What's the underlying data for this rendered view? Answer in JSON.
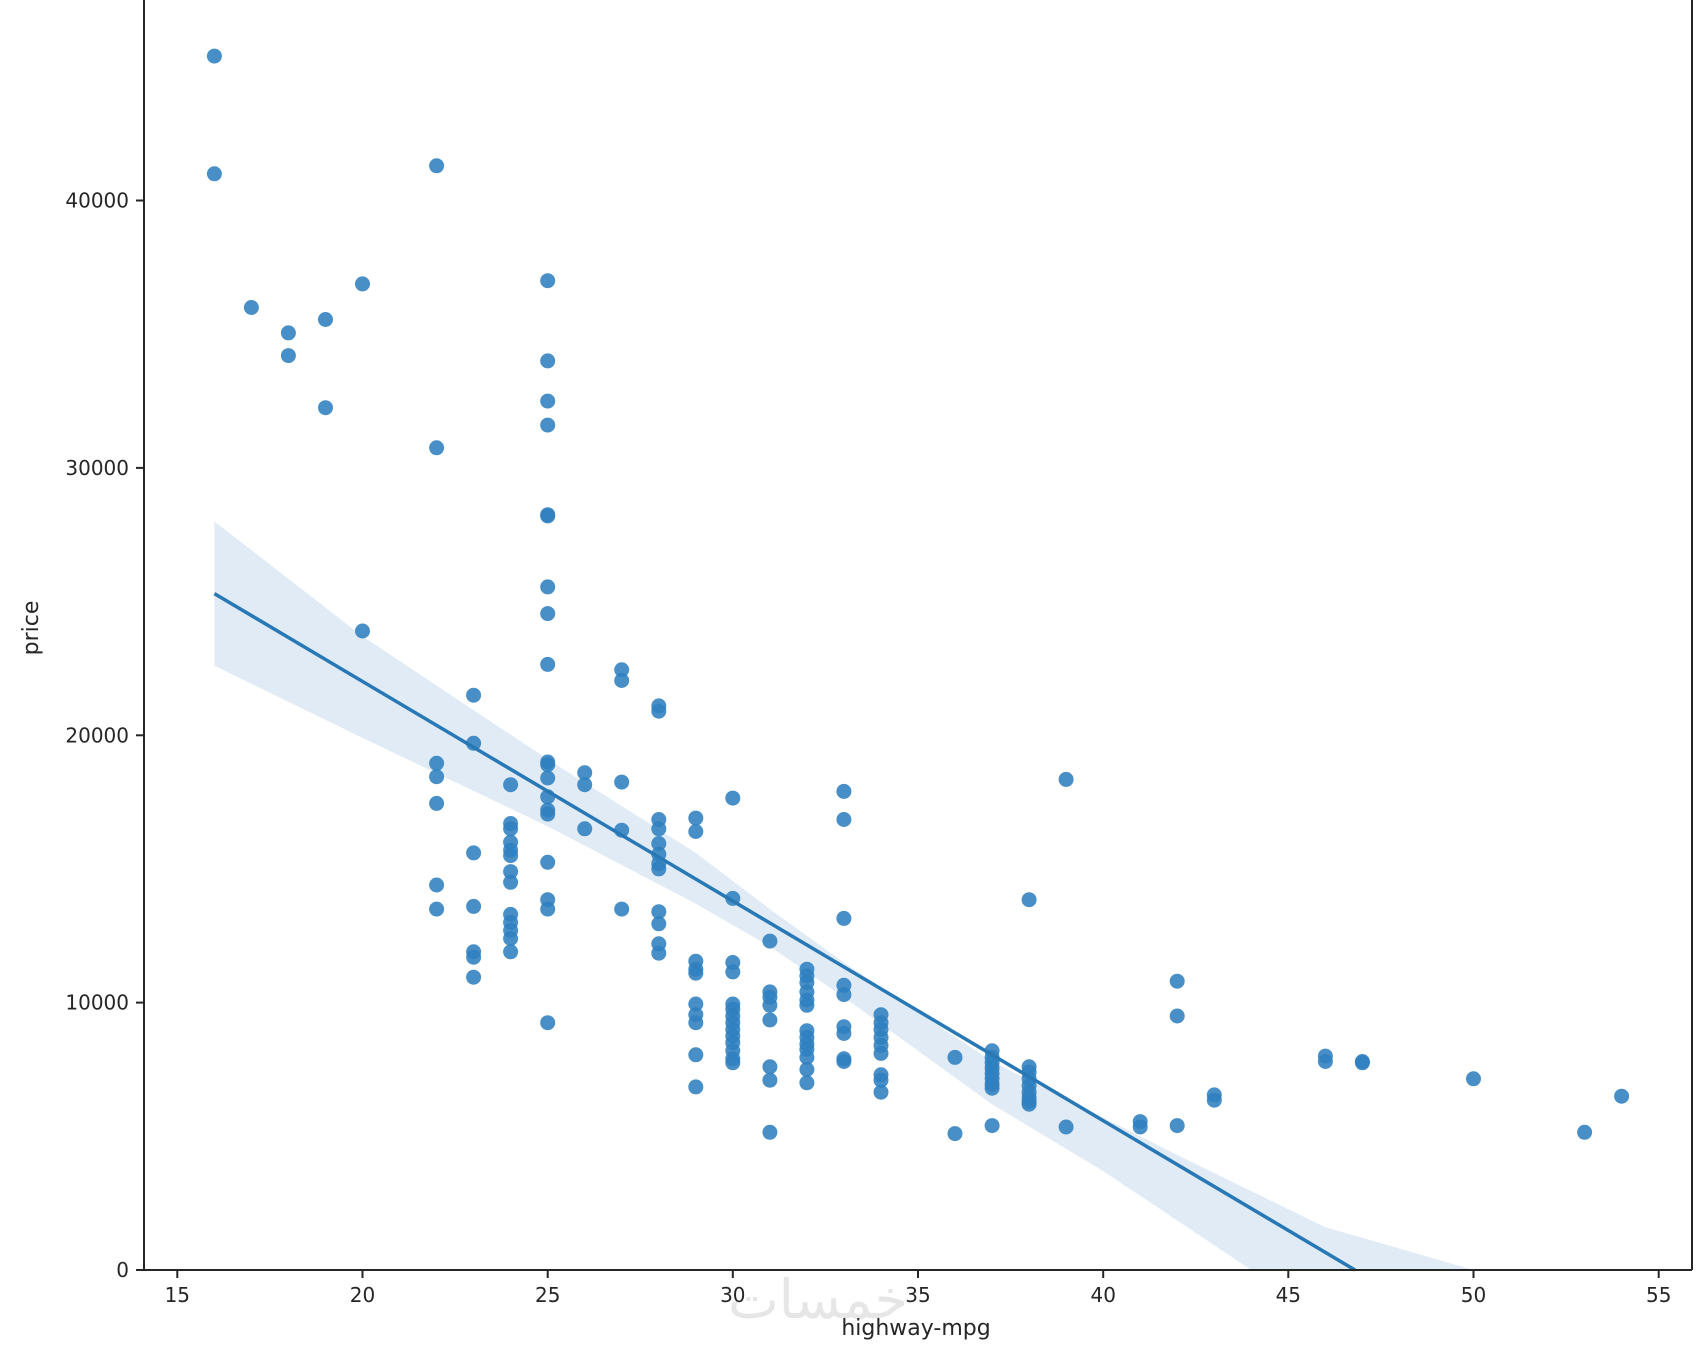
{
  "chart_data": {
    "type": "scatter",
    "title": "",
    "xlabel": "highway-mpg",
    "ylabel": "price",
    "xlim": [
      14.1,
      55.9
    ],
    "ylim": [
      0,
      47500
    ],
    "x_ticks": [
      {
        "value": 15,
        "label": "15"
      },
      {
        "value": 20,
        "label": "20"
      },
      {
        "value": 25,
        "label": "25"
      },
      {
        "value": 30,
        "label": "30"
      },
      {
        "value": 35,
        "label": "35"
      },
      {
        "value": 40,
        "label": "40"
      },
      {
        "value": 45,
        "label": "45"
      },
      {
        "value": 50,
        "label": "50"
      },
      {
        "value": 55,
        "label": "55"
      }
    ],
    "y_ticks": [
      {
        "value": 0,
        "label": "0"
      },
      {
        "value": 10000,
        "label": "10000"
      },
      {
        "value": 20000,
        "label": "20000"
      },
      {
        "value": 30000,
        "label": "30000"
      },
      {
        "value": 40000,
        "label": "40000"
      }
    ],
    "grid": false,
    "colors": {
      "points": "#2f7fbf",
      "line": "#2878b5",
      "band": "#c6dbef",
      "axes": "#262626"
    },
    "points": [
      {
        "x": 16,
        "y": 45400
      },
      {
        "x": 16,
        "y": 41000
      },
      {
        "x": 17,
        "y": 36000
      },
      {
        "x": 18,
        "y": 35050
      },
      {
        "x": 18,
        "y": 34200
      },
      {
        "x": 19,
        "y": 35550
      },
      {
        "x": 19,
        "y": 32250
      },
      {
        "x": 20,
        "y": 36880
      },
      {
        "x": 20,
        "y": 23900
      },
      {
        "x": 22,
        "y": 41300
      },
      {
        "x": 22,
        "y": 30750
      },
      {
        "x": 22,
        "y": 18950
      },
      {
        "x": 22,
        "y": 18450
      },
      {
        "x": 22,
        "y": 17450
      },
      {
        "x": 22,
        "y": 14400
      },
      {
        "x": 22,
        "y": 13500
      },
      {
        "x": 23,
        "y": 21500
      },
      {
        "x": 23,
        "y": 19700
      },
      {
        "x": 23,
        "y": 15600
      },
      {
        "x": 23,
        "y": 13600
      },
      {
        "x": 23,
        "y": 11900
      },
      {
        "x": 23,
        "y": 11700
      },
      {
        "x": 23,
        "y": 10950
      },
      {
        "x": 24,
        "y": 18150
      },
      {
        "x": 24,
        "y": 16700
      },
      {
        "x": 24,
        "y": 16500
      },
      {
        "x": 24,
        "y": 16000
      },
      {
        "x": 24,
        "y": 15700
      },
      {
        "x": 24,
        "y": 15500
      },
      {
        "x": 24,
        "y": 14900
      },
      {
        "x": 24,
        "y": 14500
      },
      {
        "x": 24,
        "y": 13300
      },
      {
        "x": 24,
        "y": 13000
      },
      {
        "x": 24,
        "y": 12700
      },
      {
        "x": 24,
        "y": 12400
      },
      {
        "x": 24,
        "y": 11900
      },
      {
        "x": 25,
        "y": 37000
      },
      {
        "x": 25,
        "y": 34000
      },
      {
        "x": 25,
        "y": 32500
      },
      {
        "x": 25,
        "y": 31600
      },
      {
        "x": 25,
        "y": 28250
      },
      {
        "x": 25,
        "y": 28200
      },
      {
        "x": 25,
        "y": 25550
      },
      {
        "x": 25,
        "y": 24550
      },
      {
        "x": 25,
        "y": 22650
      },
      {
        "x": 25,
        "y": 19000
      },
      {
        "x": 25,
        "y": 18900
      },
      {
        "x": 25,
        "y": 18400
      },
      {
        "x": 25,
        "y": 17700
      },
      {
        "x": 25,
        "y": 17200
      },
      {
        "x": 25,
        "y": 17050
      },
      {
        "x": 25,
        "y": 15250
      },
      {
        "x": 25,
        "y": 13850
      },
      {
        "x": 25,
        "y": 13500
      },
      {
        "x": 25,
        "y": 9250
      },
      {
        "x": 26,
        "y": 18600
      },
      {
        "x": 26,
        "y": 18150
      },
      {
        "x": 26,
        "y": 16500
      },
      {
        "x": 27,
        "y": 22450
      },
      {
        "x": 27,
        "y": 22050
      },
      {
        "x": 27,
        "y": 18250
      },
      {
        "x": 27,
        "y": 16450
      },
      {
        "x": 27,
        "y": 13500
      },
      {
        "x": 28,
        "y": 21100
      },
      {
        "x": 28,
        "y": 20900
      },
      {
        "x": 28,
        "y": 16850
      },
      {
        "x": 28,
        "y": 16500
      },
      {
        "x": 28,
        "y": 15950
      },
      {
        "x": 28,
        "y": 15550
      },
      {
        "x": 28,
        "y": 15200
      },
      {
        "x": 28,
        "y": 15000
      },
      {
        "x": 28,
        "y": 13400
      },
      {
        "x": 28,
        "y": 12950
      },
      {
        "x": 28,
        "y": 12200
      },
      {
        "x": 28,
        "y": 11850
      },
      {
        "x": 29,
        "y": 16900
      },
      {
        "x": 29,
        "y": 16400
      },
      {
        "x": 29,
        "y": 11550
      },
      {
        "x": 29,
        "y": 11250
      },
      {
        "x": 29,
        "y": 11100
      },
      {
        "x": 29,
        "y": 9950
      },
      {
        "x": 29,
        "y": 9550
      },
      {
        "x": 29,
        "y": 9250
      },
      {
        "x": 29,
        "y": 8050
      },
      {
        "x": 29,
        "y": 6850
      },
      {
        "x": 30,
        "y": 17650
      },
      {
        "x": 30,
        "y": 13900
      },
      {
        "x": 30,
        "y": 11500
      },
      {
        "x": 30,
        "y": 11150
      },
      {
        "x": 30,
        "y": 9950
      },
      {
        "x": 30,
        "y": 9750
      },
      {
        "x": 30,
        "y": 9500
      },
      {
        "x": 30,
        "y": 9250
      },
      {
        "x": 30,
        "y": 9000
      },
      {
        "x": 30,
        "y": 8750
      },
      {
        "x": 30,
        "y": 8500
      },
      {
        "x": 30,
        "y": 8200
      },
      {
        "x": 30,
        "y": 7900
      },
      {
        "x": 30,
        "y": 7750
      },
      {
        "x": 31,
        "y": 12300
      },
      {
        "x": 31,
        "y": 10400
      },
      {
        "x": 31,
        "y": 10200
      },
      {
        "x": 31,
        "y": 9900
      },
      {
        "x": 31,
        "y": 9350
      },
      {
        "x": 31,
        "y": 7600
      },
      {
        "x": 31,
        "y": 7100
      },
      {
        "x": 31,
        "y": 5150
      },
      {
        "x": 32,
        "y": 11250
      },
      {
        "x": 32,
        "y": 11000
      },
      {
        "x": 32,
        "y": 10750
      },
      {
        "x": 32,
        "y": 10400
      },
      {
        "x": 32,
        "y": 10100
      },
      {
        "x": 32,
        "y": 9900
      },
      {
        "x": 32,
        "y": 8950
      },
      {
        "x": 32,
        "y": 8700
      },
      {
        "x": 32,
        "y": 8450
      },
      {
        "x": 32,
        "y": 8250
      },
      {
        "x": 32,
        "y": 7950
      },
      {
        "x": 32,
        "y": 7500
      },
      {
        "x": 32,
        "y": 7000
      },
      {
        "x": 33,
        "y": 17900
      },
      {
        "x": 33,
        "y": 16850
      },
      {
        "x": 33,
        "y": 13150
      },
      {
        "x": 33,
        "y": 10650
      },
      {
        "x": 33,
        "y": 10300
      },
      {
        "x": 33,
        "y": 9100
      },
      {
        "x": 33,
        "y": 8850
      },
      {
        "x": 33,
        "y": 7900
      },
      {
        "x": 33,
        "y": 7800
      },
      {
        "x": 34,
        "y": 9550
      },
      {
        "x": 34,
        "y": 9250
      },
      {
        "x": 34,
        "y": 9000
      },
      {
        "x": 34,
        "y": 8700
      },
      {
        "x": 34,
        "y": 8400
      },
      {
        "x": 34,
        "y": 8100
      },
      {
        "x": 34,
        "y": 7300
      },
      {
        "x": 34,
        "y": 7100
      },
      {
        "x": 34,
        "y": 6650
      },
      {
        "x": 36,
        "y": 7950
      },
      {
        "x": 36,
        "y": 5100
      },
      {
        "x": 37,
        "y": 8200
      },
      {
        "x": 37,
        "y": 7950
      },
      {
        "x": 37,
        "y": 7750
      },
      {
        "x": 37,
        "y": 7550
      },
      {
        "x": 37,
        "y": 7350
      },
      {
        "x": 37,
        "y": 7150
      },
      {
        "x": 37,
        "y": 6950
      },
      {
        "x": 37,
        "y": 6800
      },
      {
        "x": 37,
        "y": 5400
      },
      {
        "x": 38,
        "y": 13850
      },
      {
        "x": 38,
        "y": 7600
      },
      {
        "x": 38,
        "y": 7400
      },
      {
        "x": 38,
        "y": 7150
      },
      {
        "x": 38,
        "y": 6900
      },
      {
        "x": 38,
        "y": 6650
      },
      {
        "x": 38,
        "y": 6450
      },
      {
        "x": 38,
        "y": 6300
      },
      {
        "x": 38,
        "y": 6200
      },
      {
        "x": 39,
        "y": 18350
      },
      {
        "x": 39,
        "y": 5350
      },
      {
        "x": 41,
        "y": 5550
      },
      {
        "x": 41,
        "y": 5350
      },
      {
        "x": 42,
        "y": 10800
      },
      {
        "x": 42,
        "y": 9500
      },
      {
        "x": 42,
        "y": 5400
      },
      {
        "x": 43,
        "y": 6550
      },
      {
        "x": 43,
        "y": 6350
      },
      {
        "x": 46,
        "y": 8000
      },
      {
        "x": 46,
        "y": 7800
      },
      {
        "x": 47,
        "y": 7800
      },
      {
        "x": 47,
        "y": 7750
      },
      {
        "x": 50,
        "y": 7150
      },
      {
        "x": 53,
        "y": 5150
      },
      {
        "x": 54,
        "y": 6500
      }
    ],
    "regression_line": [
      {
        "x": 16,
        "y": 25300
      },
      {
        "x": 46.8,
        "y": 0
      }
    ],
    "confidence_band_upper": [
      {
        "x": 16,
        "y": 28000
      },
      {
        "x": 20,
        "y": 23700
      },
      {
        "x": 25,
        "y": 19100
      },
      {
        "x": 29,
        "y": 15600
      },
      {
        "x": 31,
        "y": 13500
      },
      {
        "x": 33,
        "y": 11500
      },
      {
        "x": 37,
        "y": 7800
      },
      {
        "x": 42,
        "y": 4300
      },
      {
        "x": 46,
        "y": 1600
      },
      {
        "x": 50,
        "y": 0
      }
    ],
    "confidence_band_lower": [
      {
        "x": 16,
        "y": 22600
      },
      {
        "x": 20,
        "y": 19900
      },
      {
        "x": 25,
        "y": 16600
      },
      {
        "x": 29,
        "y": 13700
      },
      {
        "x": 31,
        "y": 12100
      },
      {
        "x": 33,
        "y": 10200
      },
      {
        "x": 37,
        "y": 6200
      },
      {
        "x": 40,
        "y": 3700
      },
      {
        "x": 44,
        "y": 0
      }
    ]
  },
  "watermark": {
    "text": "خمسات"
  }
}
